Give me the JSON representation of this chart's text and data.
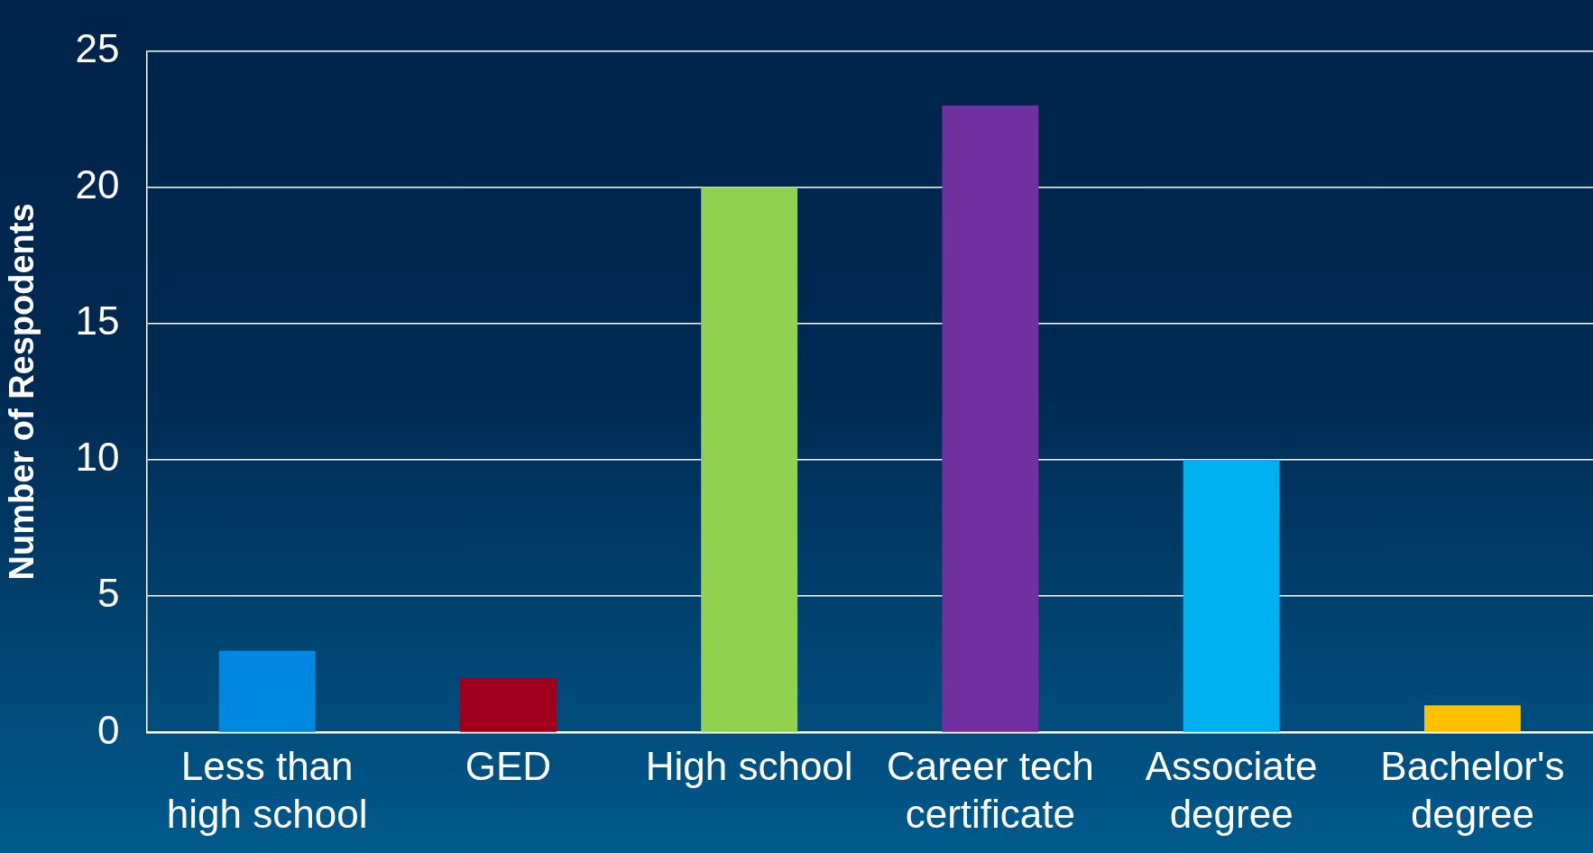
{
  "chart_data": {
    "type": "bar",
    "ylabel": "Number of Respodents",
    "categories": [
      "Less than\nhigh school",
      "GED",
      "High school",
      "Career tech\ncertificate",
      "Associate\ndegree",
      "Bachelor's\ndegree"
    ],
    "values": [
      3,
      2,
      20,
      23,
      10,
      1
    ],
    "colors": [
      "#0088e0",
      "#a0001e",
      "#92d050",
      "#7030a0",
      "#00b0f0",
      "#ffc000"
    ],
    "ylim": [
      0,
      25
    ],
    "yticks": [
      0,
      5,
      10,
      15,
      20,
      25
    ],
    "grid": "y",
    "legend": false
  }
}
